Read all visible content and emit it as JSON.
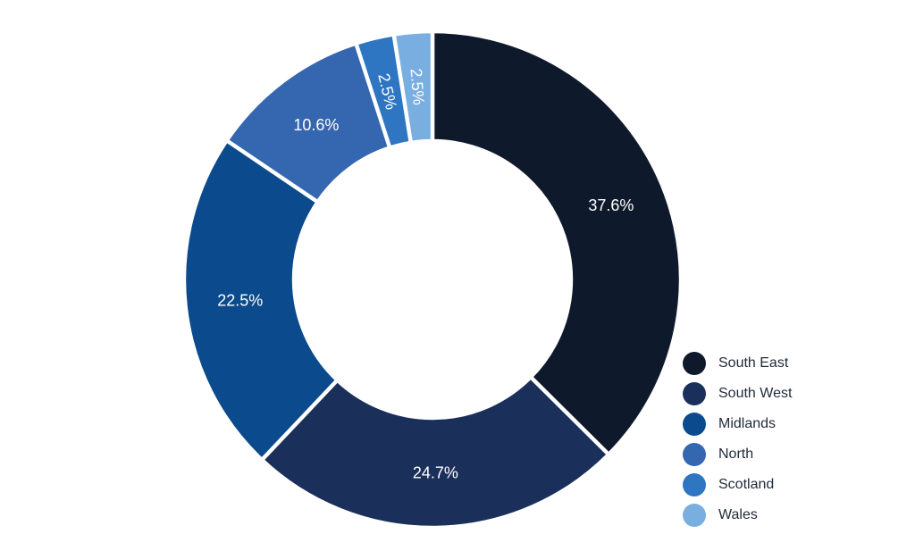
{
  "chart_data": {
    "type": "pie",
    "style": "donut",
    "title": "",
    "legend_position": "bottom-right",
    "categories": [
      "South East",
      "South West",
      "Midlands",
      "North",
      "Scotland",
      "Wales"
    ],
    "values": [
      37.6,
      24.7,
      22.5,
      10.6,
      2.5,
      2.5
    ],
    "labels": [
      "37.6%",
      "24.7%",
      "22.5%",
      "10.6%",
      "2.5%",
      "2.5%"
    ],
    "colors": [
      "#0e1a2b",
      "#1b2f5b",
      "#0b4a8c",
      "#3566b0",
      "#2e76c2",
      "#79aee0"
    ]
  }
}
